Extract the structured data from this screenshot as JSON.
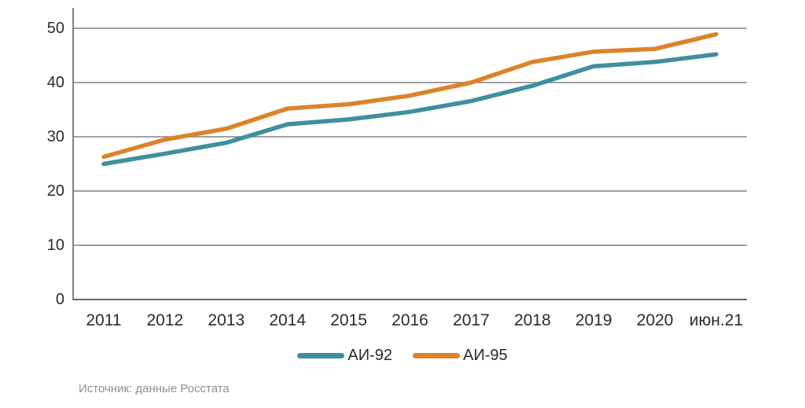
{
  "source": "Источник: данные Росстата",
  "chart_data": {
    "type": "line",
    "categories": [
      "2011",
      "2012",
      "2013",
      "2014",
      "2015",
      "2016",
      "2017",
      "2018",
      "2019",
      "2020",
      "июн.21"
    ],
    "series": [
      {
        "name": "АИ-92",
        "color": "#3F8F9E",
        "values": [
          25.0,
          26.9,
          28.9,
          32.3,
          33.2,
          34.6,
          36.6,
          39.4,
          43.0,
          43.8,
          45.2
        ]
      },
      {
        "name": "АИ-95",
        "color": "#DC8329",
        "values": [
          26.3,
          29.5,
          31.5,
          35.2,
          36.0,
          37.6,
          40.0,
          43.8,
          45.7,
          46.2,
          48.9
        ]
      }
    ],
    "ylim": [
      0,
      50
    ],
    "yticks": [
      0,
      10,
      20,
      30,
      40,
      50
    ],
    "grid": true,
    "legend_position": "bottom",
    "axis_color": "#666666",
    "grid_color": "#808080"
  }
}
